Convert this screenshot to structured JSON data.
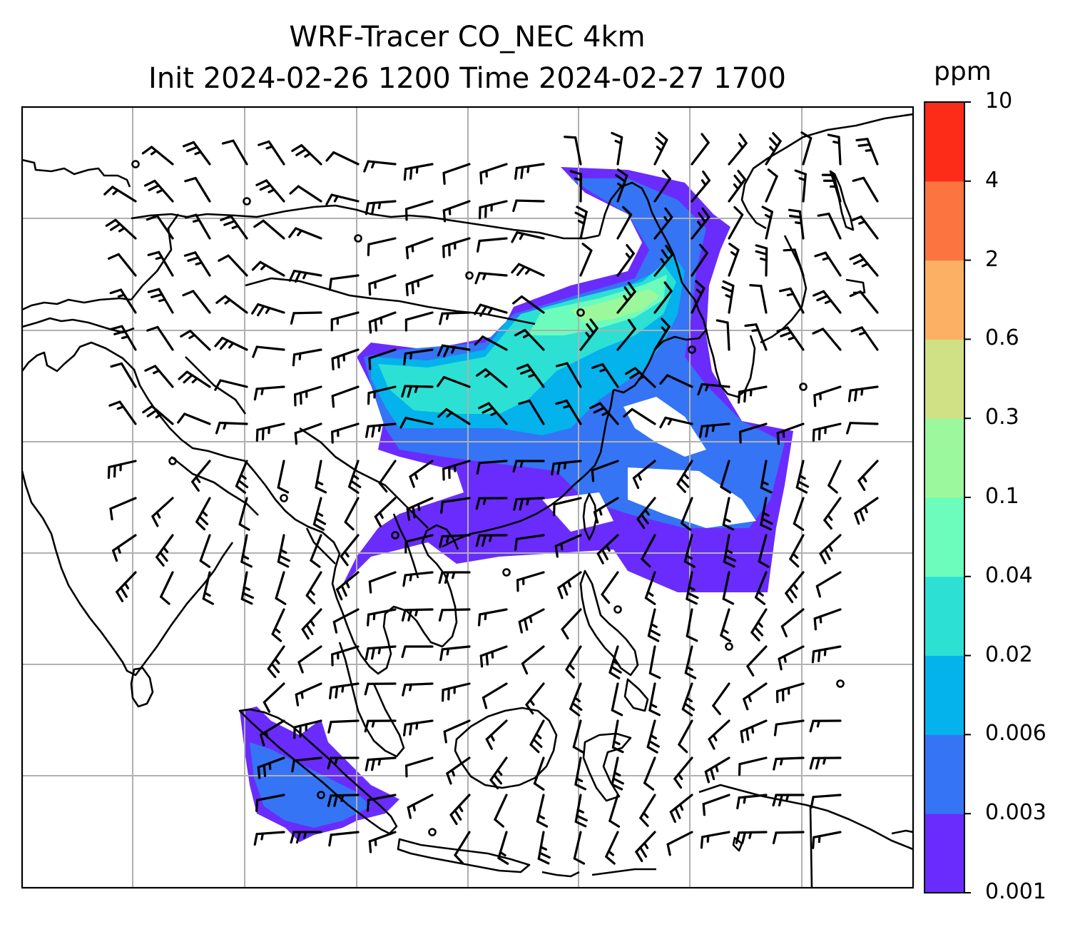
{
  "title_line1": "WRF-Tracer CO_NEC 4km",
  "title_line2": "Init 2024-02-26 1200 Time 2024-02-27 1700",
  "chart_data": {
    "type": "heatmap",
    "title": "WRF-Tracer CO_NEC 4km\nInit 2024-02-26 1200 Time 2024-02-27 1700",
    "variable": "CO_NEC tracer concentration",
    "colorbar": {
      "units": "ppm",
      "levels": [
        "0.001",
        "0.003",
        "0.006",
        "0.02",
        "0.04",
        "0.1",
        "0.3",
        "0.6",
        "2",
        "4",
        "10"
      ],
      "colors": [
        "#6a2cfc",
        "#3574f4",
        "#04b2ec",
        "#2ce0d4",
        "#6cfcbc",
        "#9cf89c",
        "#d0e084",
        "#fcb064",
        "#fc7440",
        "#fc2c18"
      ]
    },
    "overlays": [
      "wind barbs",
      "coastlines and country borders",
      "lat/lon gridlines"
    ],
    "grid": true
  },
  "colors": {
    "frame": "#000000",
    "gridline": "#b0b0b0",
    "coastline": "#000000",
    "barb": "#000000",
    "background": "#ffffff"
  }
}
